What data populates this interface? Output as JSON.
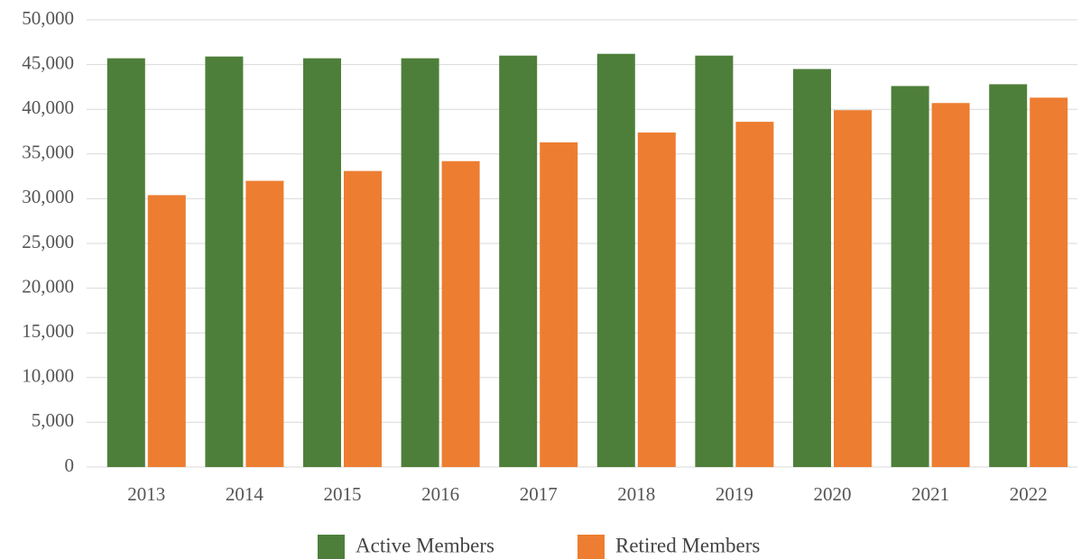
{
  "chart_data": {
    "type": "bar",
    "categories": [
      "2013",
      "2014",
      "2015",
      "2016",
      "2017",
      "2018",
      "2019",
      "2020",
      "2021",
      "2022"
    ],
    "series": [
      {
        "name": "Active Members",
        "color": "#4e7f3a",
        "values": [
          45700,
          45900,
          45700,
          45700,
          46000,
          46200,
          46000,
          44500,
          42600,
          42800
        ]
      },
      {
        "name": "Retired Members",
        "color": "#ed7d31",
        "values": [
          30400,
          32000,
          33100,
          34200,
          36300,
          37400,
          38600,
          39900,
          40700,
          41300
        ]
      }
    ],
    "ylim": [
      0,
      50000
    ],
    "yticks": [
      0,
      {
        "value": 5000,
        "label": "5,000"
      },
      {
        "value": 10000,
        "label": "10,000"
      },
      {
        "value": 15000,
        "label": "15,000"
      },
      {
        "value": 20000,
        "label": "20,000"
      },
      {
        "value": 25000,
        "label": "25,000"
      },
      {
        "value": 30000,
        "label": "30,000"
      },
      {
        "value": 35000,
        "label": "35,000"
      },
      {
        "value": 40000,
        "label": "40,000"
      },
      {
        "value": 45000,
        "label": "45,000"
      },
      {
        "value": 50000,
        "label": "50,000"
      }
    ],
    "grid": true,
    "legend": "bottom"
  }
}
